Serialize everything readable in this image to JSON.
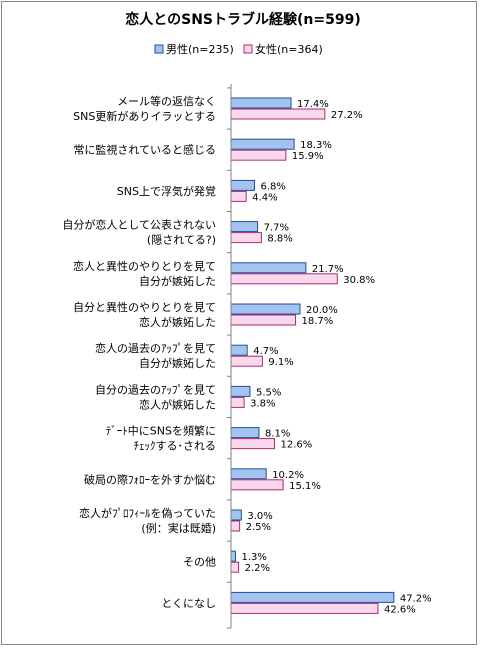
{
  "chart_data": {
    "type": "bar",
    "orientation": "horizontal",
    "title": "恋人とのSNSトラブル経験(n=599)",
    "xlim": [
      0,
      50
    ],
    "grid": false,
    "legend_position": "top-right",
    "categories": [
      [
        "メール等の返信なく",
        "SNS更新がありイラッとする"
      ],
      [
        "常に監視されていると感じる"
      ],
      [
        "SNS上で浮気が発覚"
      ],
      [
        "自分が恋人として公表されない",
        "(隠されてる?)"
      ],
      [
        "恋人と異性のやりとりを見て",
        "自分が嫉妬した"
      ],
      [
        "自分と異性のやりとりを見て",
        "恋人が嫉妬した"
      ],
      [
        "恋人の過去のｱｯﾌﾟを見て",
        "自分が嫉妬した"
      ],
      [
        "自分の過去のｱｯﾌﾟを見て",
        "恋人が嫉妬した"
      ],
      [
        "ﾃﾞｰﾄ中にSNSを頻繁に",
        "ﾁｪｯｸする･される"
      ],
      [
        "破局の際ﾌｫﾛｰを外すか悩む"
      ],
      [
        "恋人がﾌﾟﾛﾌｨｰﾙを偽っていた",
        "(例：実は既婚)"
      ],
      [
        "その他"
      ],
      [
        "とくになし"
      ]
    ],
    "series": [
      {
        "name": "男性(n=235)",
        "color": "#a3c4ef",
        "stroke": "#1f4e9c",
        "values": [
          17.4,
          18.3,
          6.8,
          7.7,
          21.7,
          20.0,
          4.7,
          5.5,
          8.1,
          10.2,
          3.0,
          1.3,
          47.2
        ],
        "labels": [
          "17.4%",
          "18.3%",
          "6.8%",
          "7.7%",
          "21.7%",
          "20.0%",
          "4.7%",
          "5.5%",
          "8.1%",
          "10.2%",
          "3.0%",
          "1.3%",
          "47.2%"
        ]
      },
      {
        "name": "女性(n=364)",
        "color": "#f9d7ec",
        "stroke": "#b02a6e",
        "values": [
          27.2,
          15.9,
          4.4,
          8.8,
          30.8,
          18.7,
          9.1,
          3.8,
          12.6,
          15.1,
          2.5,
          2.2,
          42.6
        ],
        "labels": [
          "27.2%",
          "15.9%",
          "4.4%",
          "8.8%",
          "30.8%",
          "18.7%",
          "9.1%",
          "3.8%",
          "12.6%",
          "15.1%",
          "2.5%",
          "2.2%",
          "42.6%"
        ]
      }
    ]
  }
}
